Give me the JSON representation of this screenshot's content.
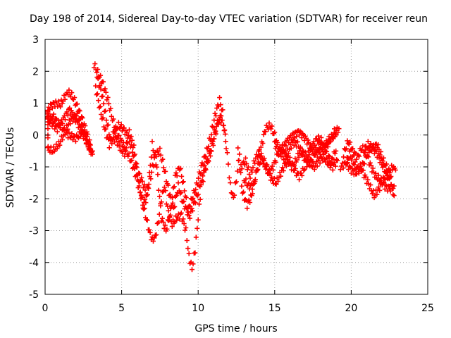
{
  "chart_data": {
    "type": "scatter",
    "title": "Day 198 of 2014, Sidereal Day-to-day VTEC variation (SDTVAR) for receiver reun",
    "xlabel": "GPS time / hours",
    "ylabel": "SDTVAR / TECUs",
    "xlim": [
      0,
      25
    ],
    "ylim": [
      -5,
      3
    ],
    "xticks": [
      0,
      5,
      10,
      15,
      20,
      25
    ],
    "yticks": [
      -5,
      -4,
      -3,
      -2,
      -1,
      0,
      1,
      2,
      3
    ],
    "grid": true,
    "marker": "+",
    "colors": {
      "series": "#ff0000",
      "grid": "#a0a0a0",
      "axes": "#000000"
    },
    "series": [
      {
        "name": "SDTVAR",
        "traces": [
          [
            [
              0.0,
              0.5
            ],
            [
              0.3,
              0.9
            ],
            [
              0.7,
              1.0
            ],
            [
              1.0,
              0.95
            ],
            [
              1.3,
              1.2
            ],
            [
              1.5,
              1.35
            ],
            [
              1.8,
              1.2
            ],
            [
              2.1,
              0.9
            ],
            [
              2.5,
              0.4
            ],
            [
              2.9,
              -0.2
            ],
            [
              3.1,
              -0.6
            ]
          ],
          [
            [
              0.0,
              0.0
            ],
            [
              0.2,
              -0.45
            ],
            [
              0.5,
              -0.5
            ],
            [
              0.9,
              -0.3
            ],
            [
              1.3,
              0.1
            ],
            [
              1.7,
              0.5
            ],
            [
              2.1,
              0.6
            ],
            [
              2.5,
              0.2
            ],
            [
              2.8,
              -0.2
            ],
            [
              3.0,
              -0.5
            ]
          ],
          [
            [
              0.0,
              0.7
            ],
            [
              0.4,
              0.4
            ],
            [
              0.8,
              0.2
            ],
            [
              1.2,
              0.5
            ],
            [
              1.6,
              0.8
            ],
            [
              2.0,
              0.5
            ],
            [
              2.4,
              0.1
            ],
            [
              2.8,
              -0.3
            ],
            [
              3.1,
              -0.5
            ]
          ],
          [
            [
              0.0,
              0.2
            ],
            [
              0.5,
              0.6
            ],
            [
              1.0,
              0.3
            ],
            [
              1.5,
              0.0
            ],
            [
              2.0,
              -0.1
            ],
            [
              2.5,
              0.1
            ],
            [
              3.0,
              -0.6
            ]
          ],
          [
            [
              3.2,
              2.2
            ],
            [
              3.5,
              1.9
            ],
            [
              3.8,
              1.6
            ],
            [
              4.1,
              1.1
            ],
            [
              4.4,
              0.5
            ],
            [
              4.7,
              0.0
            ],
            [
              5.0,
              -0.2
            ],
            [
              5.3,
              -0.5
            ],
            [
              5.6,
              -0.8
            ],
            [
              5.9,
              -1.2
            ],
            [
              6.2,
              -1.8
            ],
            [
              6.5,
              -2.4
            ],
            [
              6.8,
              -3.0
            ],
            [
              7.0,
              -3.3
            ],
            [
              7.2,
              -3.2
            ],
            [
              7.4,
              -2.7
            ],
            [
              7.6,
              -2.0
            ],
            [
              7.8,
              -1.6
            ],
            [
              8.0,
              -2.3
            ],
            [
              8.3,
              -2.8
            ],
            [
              8.6,
              -2.6
            ],
            [
              8.9,
              -2.5
            ],
            [
              9.2,
              -3.0
            ],
            [
              9.4,
              -3.8
            ],
            [
              9.6,
              -4.2
            ],
            [
              9.8,
              -3.6
            ],
            [
              10.0,
              -2.6
            ],
            [
              10.2,
              -1.6
            ],
            [
              10.5,
              -1.0
            ],
            [
              10.8,
              -0.6
            ],
            [
              11.1,
              0.0
            ],
            [
              11.3,
              0.4
            ],
            [
              11.5,
              0.5
            ],
            [
              11.7,
              0.2
            ],
            [
              11.9,
              -0.6
            ],
            [
              12.1,
              -1.6
            ],
            [
              12.3,
              -2.0
            ],
            [
              12.5,
              -1.4
            ],
            [
              12.7,
              -0.6
            ]
          ],
          [
            [
              3.3,
              1.5
            ],
            [
              3.6,
              0.8
            ],
            [
              3.9,
              0.2
            ],
            [
              4.2,
              -0.3
            ],
            [
              4.5,
              0.1
            ],
            [
              4.8,
              0.3
            ],
            [
              5.1,
              0.2
            ],
            [
              5.4,
              0.0
            ],
            [
              5.7,
              -0.5
            ],
            [
              6.0,
              -1.1
            ],
            [
              6.3,
              -1.4
            ],
            [
              6.6,
              -1.8
            ],
            [
              6.9,
              -1.3
            ],
            [
              7.2,
              -0.6
            ],
            [
              7.5,
              -0.5
            ],
            [
              7.8,
              -1.1
            ],
            [
              8.1,
              -1.8
            ],
            [
              8.4,
              -2.3
            ],
            [
              8.7,
              -1.6
            ],
            [
              9.0,
              -2.1
            ],
            [
              9.3,
              -2.4
            ],
            [
              9.6,
              -2.0
            ],
            [
              9.9,
              -1.6
            ],
            [
              10.2,
              -1.0
            ],
            [
              10.5,
              -0.6
            ],
            [
              10.8,
              -0.1
            ],
            [
              11.1,
              0.6
            ],
            [
              11.4,
              1.1
            ],
            [
              11.6,
              0.7
            ],
            [
              11.8,
              -0.2
            ]
          ],
          [
            [
              3.4,
              1.8
            ],
            [
              3.7,
              1.3
            ],
            [
              4.0,
              0.5
            ],
            [
              4.3,
              -0.2
            ],
            [
              4.6,
              -0.1
            ],
            [
              4.9,
              -0.4
            ],
            [
              5.2,
              -0.6
            ],
            [
              5.5,
              0.1
            ],
            [
              5.8,
              -0.4
            ],
            [
              6.1,
              -1.4
            ],
            [
              6.4,
              -2.2
            ],
            [
              6.7,
              -1.9
            ],
            [
              7.0,
              -0.3
            ],
            [
              7.3,
              -1.0
            ],
            [
              7.6,
              -2.6
            ],
            [
              7.9,
              -3.0
            ],
            [
              8.2,
              -2.4
            ],
            [
              8.5,
              -1.3
            ],
            [
              8.8,
              -1.0
            ],
            [
              9.1,
              -1.7
            ],
            [
              9.4,
              -2.6
            ],
            [
              9.7,
              -2.2
            ],
            [
              10.0,
              -1.8
            ],
            [
              10.3,
              -1.2
            ],
            [
              10.6,
              -0.8
            ],
            [
              10.9,
              -0.3
            ],
            [
              11.2,
              0.3
            ],
            [
              11.5,
              0.6
            ]
          ],
          [
            [
              12.6,
              -0.5
            ],
            [
              12.9,
              -1.8
            ],
            [
              13.2,
              -2.2
            ],
            [
              13.5,
              -1.9
            ],
            [
              13.8,
              -1.2
            ],
            [
              14.1,
              -0.4
            ],
            [
              14.4,
              0.2
            ],
            [
              14.7,
              0.3
            ],
            [
              15.0,
              0.0
            ],
            [
              15.3,
              -0.5
            ],
            [
              15.6,
              -0.7
            ],
            [
              15.9,
              -0.5
            ],
            [
              16.2,
              -0.2
            ],
            [
              16.5,
              -0.3
            ],
            [
              16.8,
              -0.6
            ],
            [
              17.1,
              -0.9
            ],
            [
              17.4,
              -0.8
            ],
            [
              17.7,
              -0.5
            ],
            [
              18.0,
              -0.3
            ],
            [
              18.3,
              -0.4
            ],
            [
              18.6,
              -0.2
            ],
            [
              18.9,
              0.1
            ],
            [
              19.2,
              0.2
            ]
          ],
          [
            [
              12.8,
              -1.0
            ],
            [
              13.1,
              -0.8
            ],
            [
              13.4,
              -1.3
            ],
            [
              13.7,
              -0.8
            ],
            [
              14.0,
              -0.5
            ],
            [
              14.3,
              -0.9
            ],
            [
              14.6,
              -1.2
            ],
            [
              14.9,
              -1.0
            ],
            [
              15.2,
              -0.6
            ],
            [
              15.5,
              -0.4
            ],
            [
              15.8,
              -0.7
            ],
            [
              16.1,
              -1.0
            ],
            [
              16.4,
              -0.8
            ],
            [
              16.7,
              -0.5
            ],
            [
              17.0,
              -0.6
            ],
            [
              17.3,
              -0.9
            ],
            [
              17.6,
              -1.0
            ],
            [
              17.9,
              -0.8
            ],
            [
              18.2,
              -0.7
            ],
            [
              18.5,
              -0.9
            ],
            [
              18.8,
              -1.0
            ],
            [
              19.1,
              -0.8
            ]
          ],
          [
            [
              13.0,
              -1.4
            ],
            [
              13.3,
              -1.6
            ],
            [
              13.6,
              -1.6
            ],
            [
              13.9,
              -1.0
            ],
            [
              14.2,
              -0.7
            ],
            [
              14.5,
              -1.0
            ],
            [
              14.8,
              -1.4
            ],
            [
              15.1,
              -1.5
            ],
            [
              15.4,
              -1.2
            ],
            [
              15.7,
              -0.9
            ],
            [
              16.0,
              -0.8
            ],
            [
              16.3,
              -1.1
            ],
            [
              16.6,
              -1.3
            ],
            [
              16.9,
              -1.1
            ],
            [
              17.2,
              -0.6
            ],
            [
              17.5,
              -0.3
            ],
            [
              17.8,
              -0.1
            ],
            [
              18.1,
              -0.2
            ],
            [
              18.4,
              -0.6
            ],
            [
              18.7,
              -0.8
            ],
            [
              19.0,
              -0.5
            ]
          ],
          [
            [
              15.0,
              -0.3
            ],
            [
              15.4,
              -0.5
            ],
            [
              15.8,
              -0.2
            ],
            [
              16.2,
              0.0
            ],
            [
              16.6,
              0.1
            ],
            [
              17.0,
              -0.1
            ],
            [
              17.4,
              -0.4
            ],
            [
              17.8,
              -0.6
            ],
            [
              18.2,
              -0.4
            ],
            [
              18.6,
              -0.1
            ],
            [
              19.0,
              0.0
            ]
          ],
          [
            [
              19.3,
              -1.0
            ],
            [
              19.6,
              -0.9
            ],
            [
              19.9,
              -0.6
            ],
            [
              20.2,
              -0.9
            ],
            [
              20.5,
              -1.1
            ],
            [
              20.8,
              -0.9
            ],
            [
              21.1,
              -0.5
            ],
            [
              21.4,
              -0.4
            ],
            [
              21.7,
              -0.6
            ],
            [
              22.0,
              -0.9
            ],
            [
              22.3,
              -1.2
            ],
            [
              22.6,
              -1.6
            ],
            [
              22.8,
              -1.9
            ]
          ],
          [
            [
              19.5,
              -0.6
            ],
            [
              19.8,
              -0.2
            ],
            [
              20.1,
              -0.5
            ],
            [
              20.4,
              -0.7
            ],
            [
              20.7,
              -0.4
            ],
            [
              21.0,
              -0.6
            ],
            [
              21.3,
              -1.0
            ],
            [
              21.6,
              -1.3
            ],
            [
              21.9,
              -1.4
            ],
            [
              22.2,
              -1.6
            ],
            [
              22.5,
              -1.7
            ],
            [
              22.8,
              -1.6
            ]
          ],
          [
            [
              19.7,
              -0.9
            ],
            [
              20.0,
              -1.1
            ],
            [
              20.3,
              -1.2
            ],
            [
              20.6,
              -1.0
            ],
            [
              20.9,
              -1.3
            ],
            [
              21.2,
              -1.6
            ],
            [
              21.5,
              -1.9
            ],
            [
              21.8,
              -1.7
            ],
            [
              22.1,
              -1.4
            ],
            [
              22.4,
              -1.2
            ],
            [
              22.7,
              -1.0
            ],
            [
              22.9,
              -1.1
            ]
          ],
          [
            [
              20.9,
              -0.4
            ],
            [
              21.1,
              -0.3
            ],
            [
              21.4,
              -0.4
            ],
            [
              21.7,
              -0.3
            ],
            [
              22.0,
              -0.7
            ],
            [
              22.3,
              -1.0
            ],
            [
              22.6,
              -1.3
            ]
          ]
        ]
      }
    ]
  }
}
